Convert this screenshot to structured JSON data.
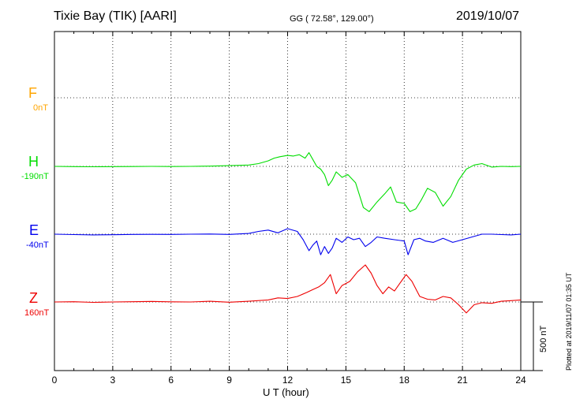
{
  "header": {
    "station": "Tixie Bay (TIK)  [AARI]",
    "coords": "GG ( 72.58°, 129.00°)",
    "date": "2019/10/07"
  },
  "side_note": "Plotted at 2019/11/07 01:35 UT",
  "scale_label": "500 nT",
  "chart_data": {
    "type": "line",
    "xlabel": "U T (hour)",
    "xlim": [
      0,
      24
    ],
    "xticks": [
      0,
      3,
      6,
      9,
      12,
      15,
      18,
      21,
      24
    ],
    "scale_bar_nT": 500,
    "grid": true,
    "series": [
      {
        "name": "F",
        "offset_label": "0nT",
        "color": "#ffa500",
        "x": [],
        "y": []
      },
      {
        "name": "H",
        "offset_label": "-190nT",
        "color": "#00dd00",
        "x": [
          0,
          1,
          2,
          3,
          4,
          5,
          6,
          7,
          8,
          9,
          10,
          10.5,
          11,
          11.3,
          11.6,
          12,
          12.3,
          12.6,
          12.9,
          13.1,
          13.3,
          13.5,
          13.7,
          13.9,
          14.1,
          14.3,
          14.5,
          14.8,
          15.1,
          15.5,
          15.9,
          16.2,
          16.6,
          17,
          17.3,
          17.6,
          18,
          18.3,
          18.6,
          18.9,
          19.2,
          19.6,
          20,
          20.4,
          20.8,
          21.2,
          21.6,
          22,
          22.5,
          23,
          23.5,
          24
        ],
        "y": [
          0,
          -2,
          -3,
          -2,
          -1,
          0,
          -1,
          0,
          2,
          5,
          10,
          20,
          40,
          60,
          70,
          80,
          75,
          85,
          60,
          100,
          50,
          0,
          -20,
          -60,
          -140,
          -100,
          -40,
          -80,
          -60,
          -120,
          -300,
          -330,
          -260,
          -200,
          -150,
          -260,
          -270,
          -330,
          -310,
          -240,
          -160,
          -190,
          -290,
          -220,
          -100,
          -20,
          10,
          20,
          -5,
          0,
          -2,
          0
        ]
      },
      {
        "name": "E",
        "offset_label": "-40nT",
        "color": "#0000ee",
        "x": [
          0,
          1,
          2,
          3,
          4,
          5,
          6,
          7,
          8,
          9,
          10,
          10.5,
          11,
          11.5,
          12,
          12.5,
          12.8,
          13.1,
          13.3,
          13.5,
          13.7,
          13.9,
          14.1,
          14.3,
          14.5,
          14.8,
          15.1,
          15.4,
          15.7,
          16,
          16.3,
          16.6,
          17,
          17.5,
          18,
          18.2,
          18.5,
          18.8,
          19.1,
          19.5,
          20,
          20.5,
          21,
          21.5,
          22,
          22.5,
          23,
          23.5,
          24
        ],
        "y": [
          0,
          -3,
          -5,
          -4,
          -2,
          -1,
          -2,
          0,
          1,
          -2,
          5,
          20,
          30,
          10,
          40,
          20,
          -40,
          -120,
          -80,
          -50,
          -150,
          -90,
          -140,
          -100,
          -30,
          -60,
          -20,
          -40,
          -30,
          -90,
          -60,
          -20,
          -30,
          -40,
          -50,
          -150,
          -40,
          -30,
          -50,
          -60,
          -30,
          -60,
          -40,
          -20,
          0,
          0,
          -3,
          -5,
          0
        ]
      },
      {
        "name": "Z",
        "offset_label": "160nT",
        "color": "#ee0000",
        "x": [
          0,
          1,
          2,
          3,
          4,
          5,
          6,
          7,
          8,
          9,
          10,
          11,
          11.5,
          12,
          12.5,
          13,
          13.3,
          13.6,
          13.9,
          14.2,
          14.5,
          14.8,
          15.2,
          15.6,
          16,
          16.3,
          16.6,
          16.9,
          17.2,
          17.5,
          17.8,
          18.1,
          18.4,
          18.8,
          19.2,
          19.6,
          20,
          20.4,
          20.8,
          21.2,
          21.6,
          22,
          22.5,
          23,
          23.5,
          24
        ],
        "y": [
          0,
          2,
          -3,
          0,
          2,
          4,
          1,
          0,
          5,
          -2,
          5,
          15,
          30,
          25,
          40,
          70,
          90,
          110,
          140,
          200,
          60,
          120,
          150,
          220,
          270,
          210,
          120,
          60,
          110,
          80,
          140,
          200,
          150,
          40,
          20,
          15,
          40,
          30,
          -20,
          -80,
          -20,
          -5,
          -10,
          5,
          10,
          15
        ]
      }
    ]
  }
}
